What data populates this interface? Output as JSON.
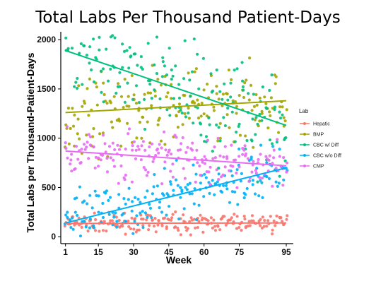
{
  "chart_data": {
    "type": "scatter",
    "title": "Total Labs Per Thousand Patient-Days",
    "xlabel": "Week",
    "ylabel": "Total Labs per Thousand-Patient-Days",
    "xlim": [
      -1,
      98
    ],
    "ylim": [
      -70,
      2080
    ],
    "xticks": [
      1,
      15,
      30,
      45,
      60,
      75,
      95
    ],
    "yticks": [
      0,
      500,
      1000,
      1500,
      2000
    ],
    "grid": false,
    "legend_title": "Lab",
    "legend_position": "right",
    "series": [
      {
        "name": "Hepatic",
        "color": "#F8766D",
        "trend": [
          [
            1,
            135
          ],
          [
            95,
            140
          ]
        ],
        "noise": 90
      },
      {
        "name": "BMP",
        "color": "#A3A500",
        "trend": [
          [
            1,
            1260
          ],
          [
            95,
            1380
          ]
        ],
        "noise": 380
      },
      {
        "name": "CBC w/ Diff",
        "color": "#00BF7D",
        "trend": [
          [
            1,
            1890
          ],
          [
            95,
            1130
          ]
        ],
        "noise": 520
      },
      {
        "name": "CBC w/o Diff",
        "color": "#00B0F6",
        "trend": [
          [
            1,
            140
          ],
          [
            95,
            700
          ]
        ],
        "noise": 260
      },
      {
        "name": "CMP",
        "color": "#E76BF3",
        "trend": [
          [
            1,
            870
          ],
          [
            95,
            720
          ]
        ],
        "noise": 250
      }
    ]
  }
}
